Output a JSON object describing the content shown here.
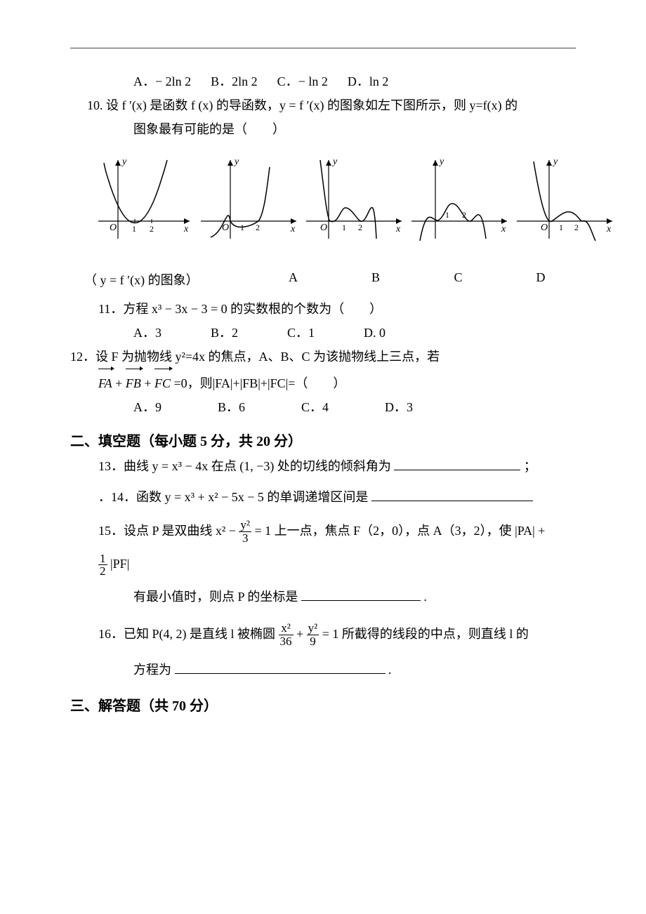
{
  "q9_options": {
    "A": "A．− 2ln 2",
    "B": "B．2ln 2",
    "C": "C．− ln 2",
    "D": "D．ln 2"
  },
  "q10": {
    "stem1": "10. 设 f ′(x) 是函数 f (x) 的导函数，y = f ′(x) 的图象如左下图所示，则 y=f(x) 的",
    "stem2": "图象最有可能的是（　　）"
  },
  "graphs": {
    "axis_a": {
      "y": "y",
      "x": "x",
      "o": "O",
      "t1": "1",
      "t2": "2"
    },
    "axis_b": {
      "y": "y",
      "x": "x",
      "o": "O",
      "t1": "1",
      "t2": "2"
    },
    "axis_c": {
      "y": "y",
      "x": "x",
      "o": "O",
      "t1": "1",
      "t2": "2"
    },
    "axis_d": {
      "y": "y",
      "x": "x",
      "o": "O",
      "t1": "1",
      "t2": "2"
    },
    "axis_e": {
      "y": "y",
      "x": "x",
      "o": "O",
      "t1": "1",
      "t2": "2"
    },
    "colors": {
      "stroke": "#000000"
    }
  },
  "labels_row": {
    "caption": "（ y = f ′(x) 的图象）",
    "A": "A",
    "B": "B",
    "C": "C",
    "D": "D"
  },
  "q11": {
    "stem": "11．方程 x³ − 3x − 3 = 0  的实数根的个数为（　　）",
    "A": "A．3",
    "B": "B．2",
    "C": "C．1",
    "D": "D. 0"
  },
  "q12": {
    "stem1": "12．设 F 为抛物线 y²=4x 的焦点，A、B、C 为该抛物线上三点，若",
    "vecFA": "FA",
    "plus": " + ",
    "vecFB": "FB",
    "vecFC": "FC",
    "tail": " =0，则|FA|+|FB|+|FC|=（　　）",
    "A": "A．9",
    "B": "B．6",
    "C": "C．4",
    "D": "D．3"
  },
  "section2": "二、填空题（每小题 5 分，共 20 分）",
  "q13": {
    "pre": "13．曲线 y = x³ − 4x 在点 (1, −3) 处的切线的倾斜角为",
    "post": "；"
  },
  "q14": {
    "pre": "．14．函数 y = x³ + x² − 5x − 5 的单调递增区间是"
  },
  "q15": {
    "pre1": "15．设点 P 是双曲线 x² − ",
    "frac_num": "y²",
    "frac_den": "3",
    "mid1": " = 1 上一点，焦点 F（2，0），点 A（3，2），使 |PA| +",
    "half_num": "1",
    "half_den": "2",
    "mid2": " |PF|",
    "line3a": "有最小值时，则点 P 的坐标是",
    "line3b": "."
  },
  "q16": {
    "pre": "16．已知 P(4, 2) 是直线 l 被椭圆 ",
    "xnum": "x²",
    "xden": "36",
    "plus": " + ",
    "ynum": "y²",
    "yden": "9",
    "mid": " = 1 所截得的线段的中点，则直线 l 的",
    "line2a": "方程为",
    "line2b": "."
  },
  "section3": "三、解答题（共 70 分）",
  "blank_widths": {
    "q13": 180,
    "q14": 230,
    "q15": 170,
    "q16": 300
  }
}
